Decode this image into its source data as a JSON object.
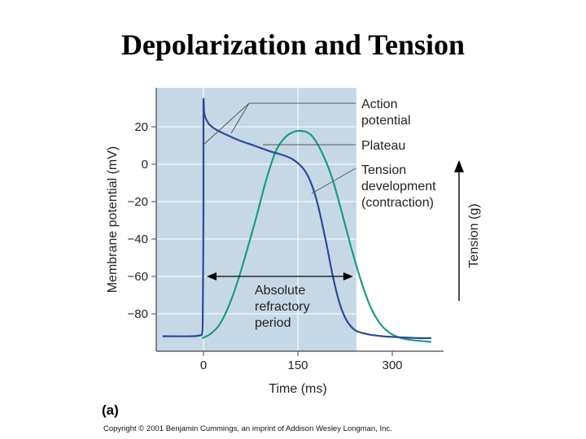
{
  "page": {
    "title": "Depolarization and Tension"
  },
  "chart_data": {
    "type": "line",
    "title": "Depolarization and Tension",
    "xlabel": "Time (ms)",
    "ylabel": "Membrane potential (mV)",
    "y2label": "Tension (g)",
    "xlim": [
      -75,
      370
    ],
    "ylim": [
      -100,
      40
    ],
    "xticks": [
      0,
      150,
      300
    ],
    "xtick_labels": [
      "0",
      "150",
      "300"
    ],
    "yticks": [
      20,
      0,
      -20,
      -40,
      -60,
      -80
    ],
    "ytick_labels": [
      "20",
      "0",
      "−20",
      "−40",
      "−60",
      "−80"
    ],
    "grid": true,
    "shaded_region": {
      "x_start": -75,
      "x_end": 243,
      "label": "Absolute refractory period"
    },
    "refractory_arrow": {
      "x_start": 0,
      "x_end": 243
    },
    "colors": {
      "action_potential": "#2a4a9c",
      "tension": "#1a9a86",
      "shade": "#c6d8e6",
      "grid": "#ffffff",
      "annotation_line": "#555555"
    },
    "series": [
      {
        "name": "Action potential",
        "color": "#2a4a9c",
        "x": [
          -65,
          -20,
          -5,
          -2,
          -1,
          0,
          0,
          1,
          3,
          6,
          10,
          20,
          35,
          55,
          80,
          105,
          125,
          140,
          152,
          162,
          172,
          182,
          195,
          205,
          215,
          225,
          235,
          245,
          262,
          285,
          310,
          340,
          362
        ],
        "y": [
          -92,
          -92,
          -91.5,
          -90,
          -80,
          -20,
          32,
          28,
          25,
          23,
          21,
          18.5,
          16,
          13,
          10,
          7,
          5,
          3,
          0,
          -4,
          -11,
          -22,
          -42,
          -59,
          -73,
          -82,
          -87,
          -89.5,
          -91,
          -92,
          -92.5,
          -93,
          -93
        ]
      },
      {
        "name": "Tension development (contraction)",
        "color": "#1a9a86",
        "x": [
          -2,
          10,
          25,
          40,
          55,
          70,
          85,
          100,
          115,
          130,
          145,
          155,
          165,
          175,
          190,
          205,
          220,
          235,
          250,
          265,
          280,
          295,
          310,
          330,
          362
        ],
        "y": [
          -93,
          -91,
          -86,
          -76,
          -62,
          -45,
          -27,
          -8,
          7,
          14.5,
          17.5,
          17.8,
          17,
          14,
          5,
          -8,
          -26,
          -45,
          -62,
          -76,
          -85,
          -90,
          -92.5,
          -94,
          -95
        ]
      }
    ],
    "annotations": [
      {
        "name": "action-potential",
        "lines": [
          "Action",
          "potential"
        ]
      },
      {
        "name": "plateau",
        "lines": [
          "Plateau"
        ]
      },
      {
        "name": "tension-development",
        "lines": [
          "Tension",
          "development",
          "(contraction)"
        ]
      },
      {
        "name": "refractory",
        "lines": [
          "Absolute",
          "refractory",
          "period"
        ]
      }
    ]
  },
  "panel_label": "(a)",
  "copyright": "Copyright © 2001 Benjamin Cummings, an imprint of Addison Wesley Longman, Inc."
}
